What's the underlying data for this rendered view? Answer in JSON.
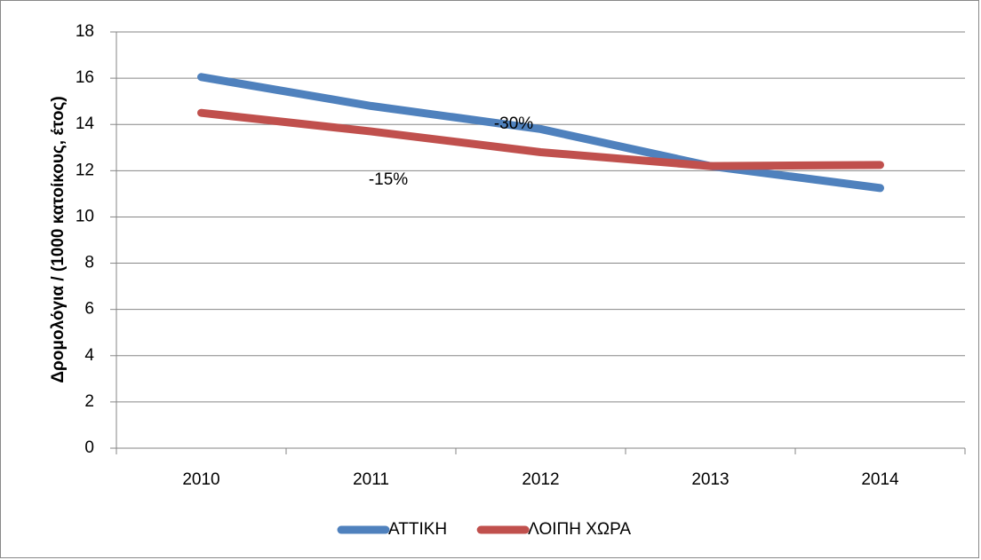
{
  "chart_data": {
    "type": "line",
    "y_label": "Δρομολόγια / (1000 κατοίκους, έτος)",
    "categories": [
      "2010",
      "2011",
      "2012",
      "2013",
      "2014"
    ],
    "series": [
      {
        "name": "ΑΤΤΙΚΗ",
        "color": "#4f81bd",
        "values": [
          16.05,
          14.8,
          13.8,
          12.2,
          11.25
        ]
      },
      {
        "name": "ΛΟΙΠΗ ΧΩΡΑ",
        "color": "#c0504d",
        "values": [
          14.5,
          13.7,
          12.8,
          12.2,
          12.25
        ]
      }
    ],
    "annotations": [
      "-30%",
      "-15%"
    ],
    "ylim": [
      0,
      18
    ],
    "yticks": [
      0,
      2,
      4,
      6,
      8,
      10,
      12,
      14,
      16,
      18
    ],
    "grid": true,
    "legend": "bottom"
  }
}
